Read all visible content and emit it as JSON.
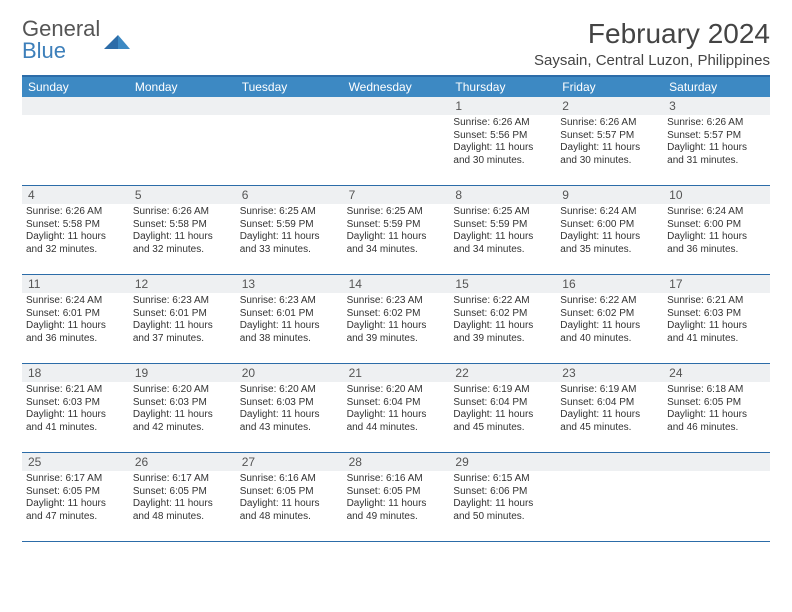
{
  "brand": {
    "word1": "General",
    "word2": "Blue",
    "word1_color": "#555555",
    "word2_color": "#3d7fba"
  },
  "title": "February 2024",
  "location": "Saysain, Central Luzon, Philippines",
  "title_fontsize": 28,
  "location_fontsize": 15,
  "colors": {
    "header_band": "#3d89c3",
    "header_text": "#ffffff",
    "rule": "#2c6ca8",
    "daynum_band": "#eef0f2",
    "daynum_text": "#555555",
    "cell_text": "#333333",
    "background": "#ffffff"
  },
  "dow": [
    "Sunday",
    "Monday",
    "Tuesday",
    "Wednesday",
    "Thursday",
    "Friday",
    "Saturday"
  ],
  "weeks": [
    [
      null,
      null,
      null,
      null,
      {
        "n": "1",
        "sr": "6:26 AM",
        "ss": "5:56 PM",
        "dl": "11 hours and 30 minutes."
      },
      {
        "n": "2",
        "sr": "6:26 AM",
        "ss": "5:57 PM",
        "dl": "11 hours and 30 minutes."
      },
      {
        "n": "3",
        "sr": "6:26 AM",
        "ss": "5:57 PM",
        "dl": "11 hours and 31 minutes."
      }
    ],
    [
      {
        "n": "4",
        "sr": "6:26 AM",
        "ss": "5:58 PM",
        "dl": "11 hours and 32 minutes."
      },
      {
        "n": "5",
        "sr": "6:26 AM",
        "ss": "5:58 PM",
        "dl": "11 hours and 32 minutes."
      },
      {
        "n": "6",
        "sr": "6:25 AM",
        "ss": "5:59 PM",
        "dl": "11 hours and 33 minutes."
      },
      {
        "n": "7",
        "sr": "6:25 AM",
        "ss": "5:59 PM",
        "dl": "11 hours and 34 minutes."
      },
      {
        "n": "8",
        "sr": "6:25 AM",
        "ss": "5:59 PM",
        "dl": "11 hours and 34 minutes."
      },
      {
        "n": "9",
        "sr": "6:24 AM",
        "ss": "6:00 PM",
        "dl": "11 hours and 35 minutes."
      },
      {
        "n": "10",
        "sr": "6:24 AM",
        "ss": "6:00 PM",
        "dl": "11 hours and 36 minutes."
      }
    ],
    [
      {
        "n": "11",
        "sr": "6:24 AM",
        "ss": "6:01 PM",
        "dl": "11 hours and 36 minutes."
      },
      {
        "n": "12",
        "sr": "6:23 AM",
        "ss": "6:01 PM",
        "dl": "11 hours and 37 minutes."
      },
      {
        "n": "13",
        "sr": "6:23 AM",
        "ss": "6:01 PM",
        "dl": "11 hours and 38 minutes."
      },
      {
        "n": "14",
        "sr": "6:23 AM",
        "ss": "6:02 PM",
        "dl": "11 hours and 39 minutes."
      },
      {
        "n": "15",
        "sr": "6:22 AM",
        "ss": "6:02 PM",
        "dl": "11 hours and 39 minutes."
      },
      {
        "n": "16",
        "sr": "6:22 AM",
        "ss": "6:02 PM",
        "dl": "11 hours and 40 minutes."
      },
      {
        "n": "17",
        "sr": "6:21 AM",
        "ss": "6:03 PM",
        "dl": "11 hours and 41 minutes."
      }
    ],
    [
      {
        "n": "18",
        "sr": "6:21 AM",
        "ss": "6:03 PM",
        "dl": "11 hours and 41 minutes."
      },
      {
        "n": "19",
        "sr": "6:20 AM",
        "ss": "6:03 PM",
        "dl": "11 hours and 42 minutes."
      },
      {
        "n": "20",
        "sr": "6:20 AM",
        "ss": "6:03 PM",
        "dl": "11 hours and 43 minutes."
      },
      {
        "n": "21",
        "sr": "6:20 AM",
        "ss": "6:04 PM",
        "dl": "11 hours and 44 minutes."
      },
      {
        "n": "22",
        "sr": "6:19 AM",
        "ss": "6:04 PM",
        "dl": "11 hours and 45 minutes."
      },
      {
        "n": "23",
        "sr": "6:19 AM",
        "ss": "6:04 PM",
        "dl": "11 hours and 45 minutes."
      },
      {
        "n": "24",
        "sr": "6:18 AM",
        "ss": "6:05 PM",
        "dl": "11 hours and 46 minutes."
      }
    ],
    [
      {
        "n": "25",
        "sr": "6:17 AM",
        "ss": "6:05 PM",
        "dl": "11 hours and 47 minutes."
      },
      {
        "n": "26",
        "sr": "6:17 AM",
        "ss": "6:05 PM",
        "dl": "11 hours and 48 minutes."
      },
      {
        "n": "27",
        "sr": "6:16 AM",
        "ss": "6:05 PM",
        "dl": "11 hours and 48 minutes."
      },
      {
        "n": "28",
        "sr": "6:16 AM",
        "ss": "6:05 PM",
        "dl": "11 hours and 49 minutes."
      },
      {
        "n": "29",
        "sr": "6:15 AM",
        "ss": "6:06 PM",
        "dl": "11 hours and 50 minutes."
      },
      null,
      null
    ]
  ],
  "labels": {
    "sunrise": "Sunrise:",
    "sunset": "Sunset:",
    "daylight": "Daylight:"
  }
}
